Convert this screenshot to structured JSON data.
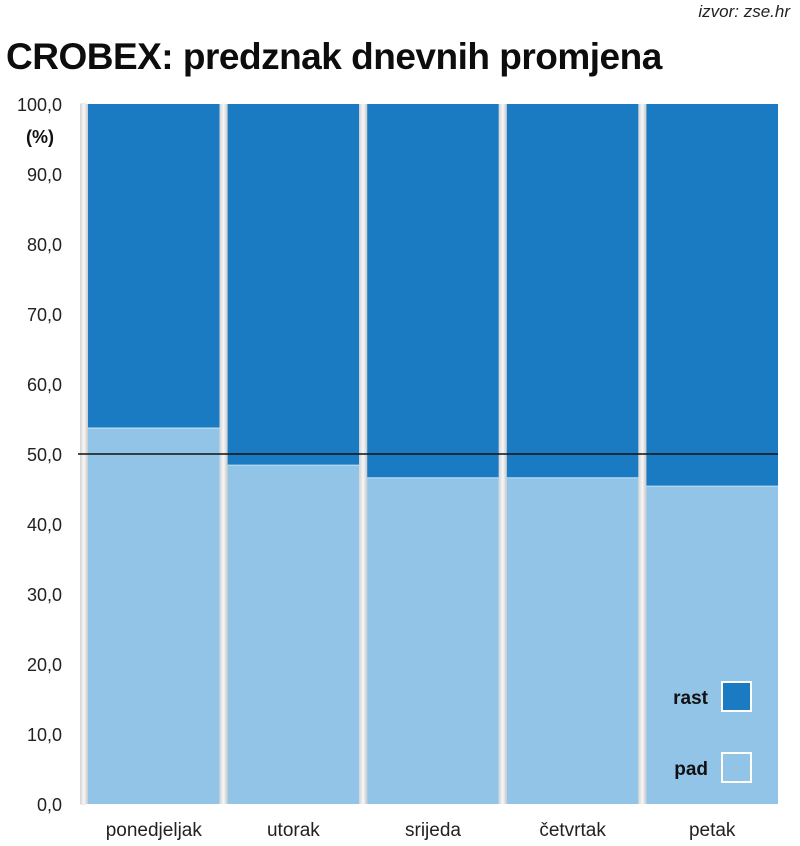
{
  "source_note": "izvor: zse.hr",
  "chart_data": {
    "type": "bar",
    "stacked": true,
    "title": "CROBEX: predznak dnevnih promjena",
    "ylabel": "(%)",
    "xlabel": "",
    "ylim": [
      0,
      100
    ],
    "yticks": [
      "0,0",
      "10,0",
      "20,0",
      "30,0",
      "40,0",
      "50,0",
      "60,0",
      "70,0",
      "80,0",
      "90,0",
      "100,0"
    ],
    "categories": [
      "ponedjeljak",
      "utorak",
      "srijeda",
      "četvrtak",
      "petak"
    ],
    "series": [
      {
        "name": "pad",
        "color": "#91c4e6",
        "values": [
          53.7,
          48.4,
          46.6,
          46.6,
          45.4
        ]
      },
      {
        "name": "rast",
        "color": "#1a7bc2",
        "values": [
          46.3,
          51.6,
          53.4,
          53.4,
          54.6
        ]
      }
    ],
    "reference_line": 50,
    "legend": {
      "placement": "bottom-right",
      "entries": [
        "rast",
        "pad"
      ]
    },
    "grid": false
  }
}
